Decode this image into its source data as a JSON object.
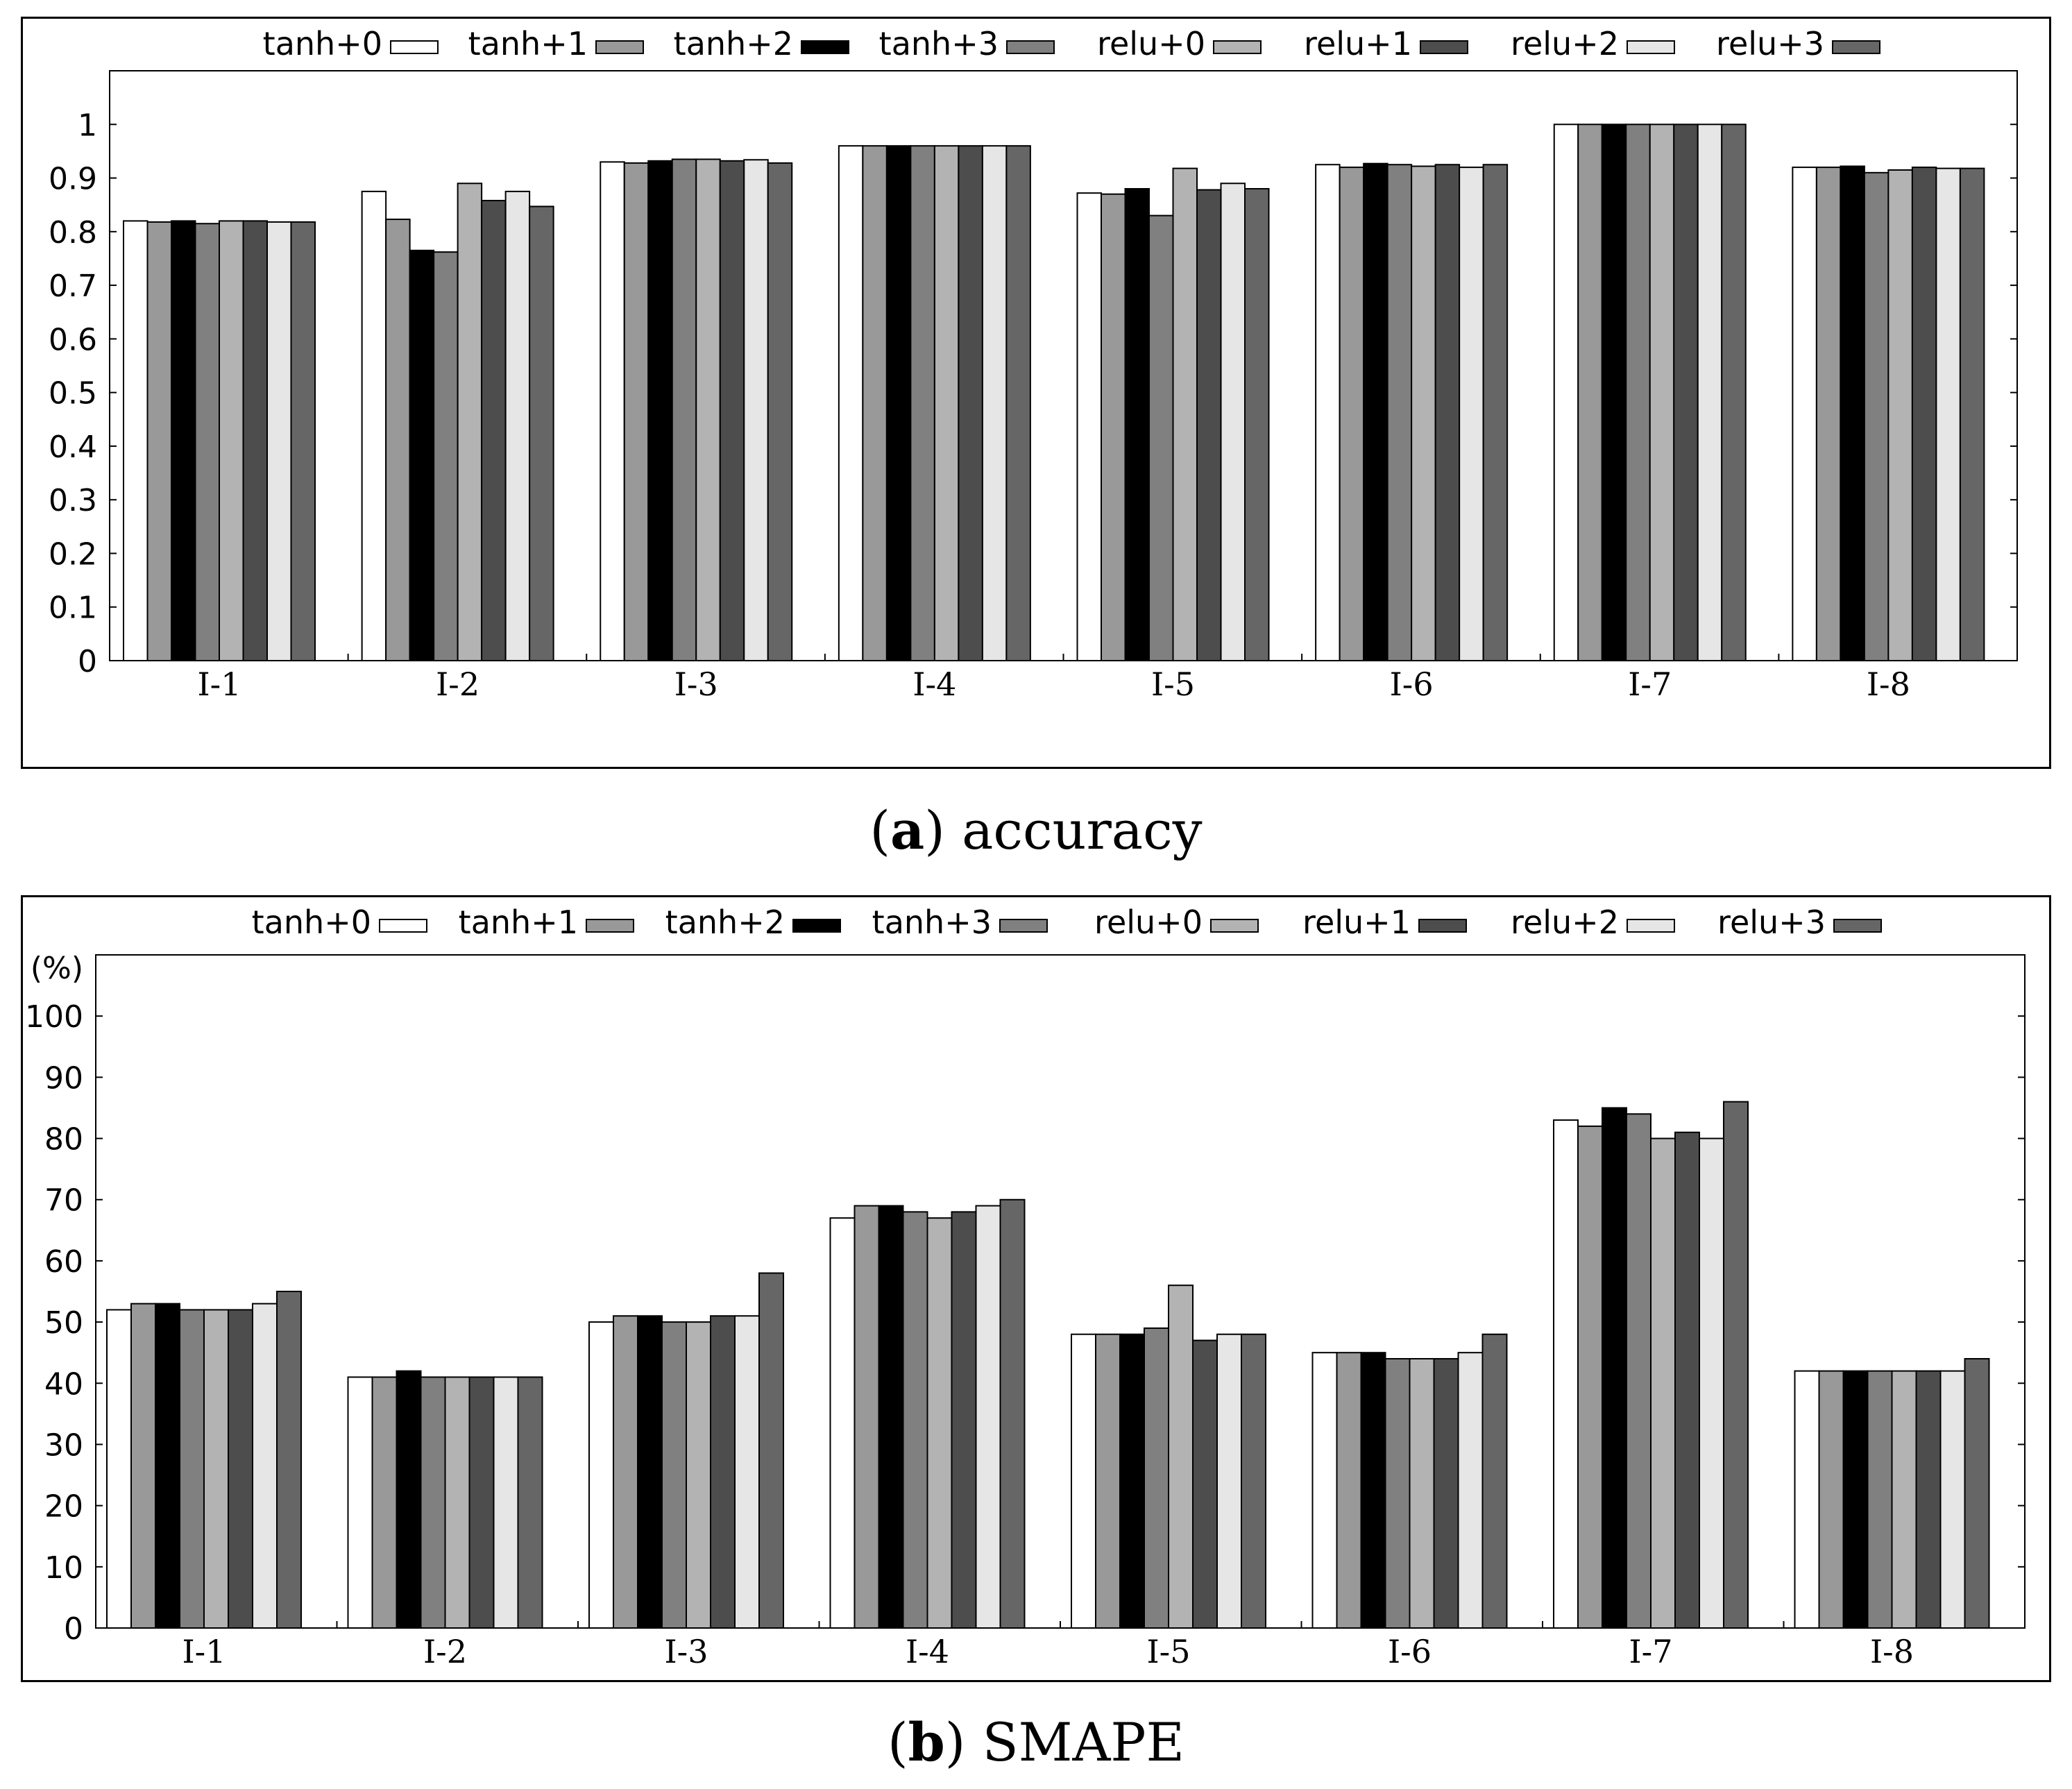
{
  "series_names": [
    "tanh+0",
    "tanh+1",
    "tanh+2",
    "tanh+3",
    "relu+0",
    "relu+1",
    "relu+2",
    "relu+3"
  ],
  "colors": {
    "tanh+0": "#ffffff",
    "tanh+1": "#999999",
    "tanh+2": "#000000",
    "tanh+3": "#808080",
    "relu+0": "#b3b3b3",
    "relu+1": "#4d4d4d",
    "relu+2": "#e6e6e6",
    "relu+3": "#666666"
  },
  "chart_data": [
    {
      "type": "bar",
      "title": "",
      "xlabel": "",
      "ylabel": "",
      "ylim": [
        0,
        1.1
      ],
      "yticks": [
        0,
        0.1,
        0.2,
        0.3,
        0.4,
        0.5,
        0.6,
        0.7,
        0.8,
        0.9,
        1
      ],
      "ytick_labels": [
        "0",
        "0.1",
        "0.2",
        "0.3",
        "0.4",
        "0.5",
        "0.6",
        "0.7",
        "0.8",
        "0.9",
        "1"
      ],
      "legend_position": "top",
      "grid": false,
      "categories": [
        "I-1",
        "I-2",
        "I-3",
        "I-4",
        "I-5",
        "I-6",
        "I-7",
        "I-8"
      ],
      "series": [
        {
          "name": "tanh+0",
          "values": [
            0.82,
            0.875,
            0.93,
            0.96,
            0.872,
            0.925,
            1.0,
            0.92
          ]
        },
        {
          "name": "tanh+1",
          "values": [
            0.818,
            0.823,
            0.928,
            0.96,
            0.87,
            0.92,
            1.0,
            0.92
          ]
        },
        {
          "name": "tanh+2",
          "values": [
            0.82,
            0.765,
            0.932,
            0.96,
            0.88,
            0.927,
            1.0,
            0.922
          ]
        },
        {
          "name": "tanh+3",
          "values": [
            0.815,
            0.762,
            0.935,
            0.96,
            0.83,
            0.925,
            1.0,
            0.91
          ]
        },
        {
          "name": "relu+0",
          "values": [
            0.82,
            0.89,
            0.935,
            0.96,
            0.918,
            0.922,
            1.0,
            0.915
          ]
        },
        {
          "name": "relu+1",
          "values": [
            0.82,
            0.858,
            0.932,
            0.96,
            0.878,
            0.925,
            1.0,
            0.92
          ]
        },
        {
          "name": "relu+2",
          "values": [
            0.818,
            0.875,
            0.934,
            0.96,
            0.89,
            0.92,
            1.0,
            0.918
          ]
        },
        {
          "name": "relu+3",
          "values": [
            0.818,
            0.847,
            0.928,
            0.96,
            0.88,
            0.925,
            1.0,
            0.918
          ]
        }
      ]
    },
    {
      "type": "bar",
      "title": "",
      "xlabel": "",
      "ylabel": "(%)",
      "ylim": [
        0,
        110
      ],
      "yticks": [
        0,
        10,
        20,
        30,
        40,
        50,
        60,
        70,
        80,
        90,
        100
      ],
      "ytick_labels": [
        "0",
        "10",
        "20",
        "30",
        "40",
        "50",
        "60",
        "70",
        "80",
        "90",
        "100"
      ],
      "legend_position": "top",
      "grid": false,
      "categories": [
        "I-1",
        "I-2",
        "I-3",
        "I-4",
        "I-5",
        "I-6",
        "I-7",
        "I-8"
      ],
      "series": [
        {
          "name": "tanh+0",
          "values": [
            52,
            41,
            50,
            67,
            48,
            45,
            83,
            42
          ]
        },
        {
          "name": "tanh+1",
          "values": [
            53,
            41,
            51,
            69,
            48,
            45,
            82,
            42
          ]
        },
        {
          "name": "tanh+2",
          "values": [
            53,
            42,
            51,
            69,
            48,
            45,
            85,
            42
          ]
        },
        {
          "name": "tanh+3",
          "values": [
            52,
            41,
            50,
            68,
            49,
            44,
            84,
            42
          ]
        },
        {
          "name": "relu+0",
          "values": [
            52,
            41,
            50,
            67,
            56,
            44,
            80,
            42
          ]
        },
        {
          "name": "relu+1",
          "values": [
            52,
            41,
            51,
            68,
            47,
            44,
            81,
            42
          ]
        },
        {
          "name": "relu+2",
          "values": [
            53,
            41,
            51,
            69,
            48,
            45,
            80,
            42
          ]
        },
        {
          "name": "relu+3",
          "values": [
            55,
            41,
            58,
            70,
            48,
            48,
            86,
            44
          ]
        }
      ]
    }
  ],
  "captions": {
    "a_letter": "a",
    "a_text": "accuracy",
    "b_letter": "b",
    "b_text": "SMAPE"
  }
}
